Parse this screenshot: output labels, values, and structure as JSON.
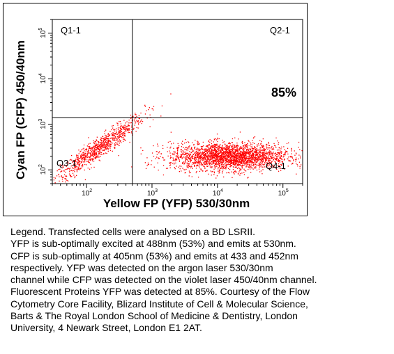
{
  "chart_data": {
    "type": "scatter",
    "xlabel": "Yellow FP (YFP) 530/30nm",
    "ylabel": "Cyan FP (CFP) 450/40nm",
    "xscale": "log",
    "yscale": "log",
    "xlim": [
      30,
      200000
    ],
    "ylim": [
      50,
      200000
    ],
    "x_ticks": [
      {
        "value": 100,
        "label": "10",
        "exp": "2"
      },
      {
        "value": 1000,
        "label": "10",
        "exp": "3"
      },
      {
        "value": 10000,
        "label": "10",
        "exp": "4"
      },
      {
        "value": 100000,
        "label": "10",
        "exp": "5"
      }
    ],
    "y_ticks": [
      {
        "value": 100,
        "label": "10",
        "exp": "2"
      },
      {
        "value": 1000,
        "label": "10",
        "exp": "3"
      },
      {
        "value": 10000,
        "label": "10",
        "exp": "4"
      },
      {
        "value": 100000,
        "label": "10",
        "exp": "5"
      }
    ],
    "gates": {
      "x": 500,
      "y": 1400
    },
    "quadrant_labels": {
      "q1": "Q1-1",
      "q2": "Q2-1",
      "q3": "Q3-1",
      "q4": "Q4-1"
    },
    "annotation": "85%",
    "point_color": "#ff0000",
    "series": [
      {
        "population": "CFP-YFP-diagonal",
        "x_center": 150,
        "y_center": 300,
        "x_spread_decades": 0.35,
        "slope": 1.0,
        "y_spread_decades": 0.12,
        "count": 900
      },
      {
        "population": "YFP-positive",
        "x_center": 15000,
        "y_center": 200,
        "x_spread_decades": 0.45,
        "y_spread_decades": 0.15,
        "count": 2600
      }
    ]
  },
  "caption": {
    "lines": [
      "Legend. Transfected cells were analysed on a BD LSRII.",
      "YFP is sub-optimally excited at 488nm (53%)  and emits at 530nm.",
      "CFP is sub-optimally at 405nm (53%) and emits at 433 and 452nm",
      "respectively. YFP was detected on the argon laser 530/30nm",
      "channel while CFP was detected on the violet laser 450/40nm channel.",
      "Fluorescent Proteins YFP was detected at 85%. Courtesy of the Flow",
      "Cytometry Core Facility, Blizard Institute of Cell & Molecular Science,",
      "Barts & The Royal London School of Medicine & Dentistry, London",
      "University, 4 Newark Street, London E1 2AT."
    ]
  }
}
